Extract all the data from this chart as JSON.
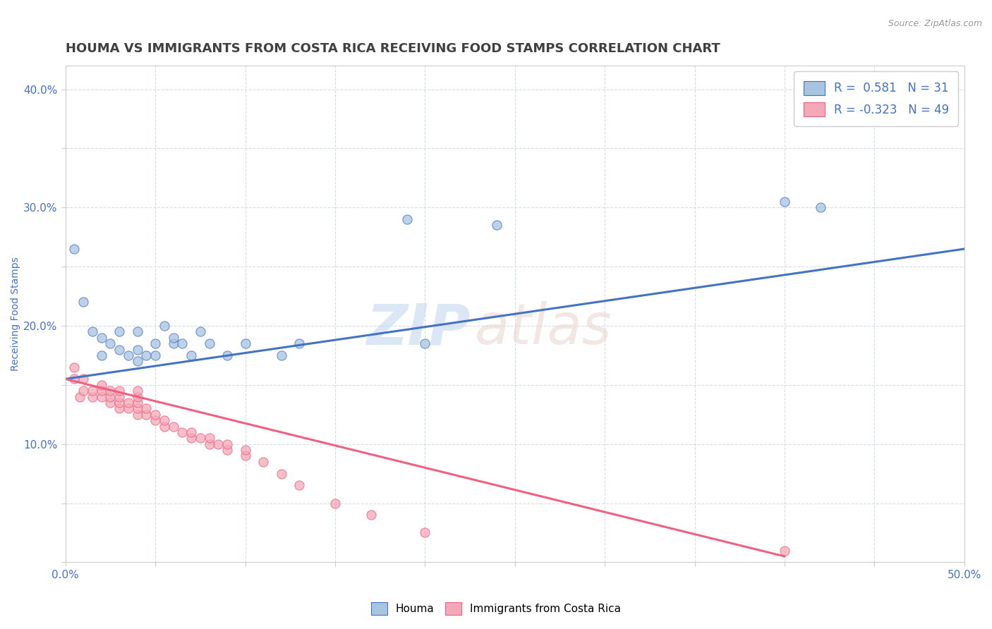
{
  "title": "HOUMA VS IMMIGRANTS FROM COSTA RICA RECEIVING FOOD STAMPS CORRELATION CHART",
  "source_text": "Source: ZipAtlas.com",
  "ylabel": "Receiving Food Stamps",
  "xlim": [
    0.0,
    0.5
  ],
  "ylim": [
    0.0,
    0.42
  ],
  "xticks": [
    0.0,
    0.05,
    0.1,
    0.15,
    0.2,
    0.25,
    0.3,
    0.35,
    0.4,
    0.45,
    0.5
  ],
  "yticks": [
    0.0,
    0.05,
    0.1,
    0.15,
    0.2,
    0.25,
    0.3,
    0.35,
    0.4
  ],
  "blue_label": "Houma",
  "pink_label": "Immigrants from Costa Rica",
  "R_blue": 0.581,
  "N_blue": 31,
  "R_pink": -0.323,
  "N_pink": 49,
  "blue_color": "#a8c4e0",
  "pink_color": "#f4a8b8",
  "blue_line_color": "#4472c4",
  "pink_line_color": "#f06080",
  "blue_scatter_x": [
    0.005,
    0.01,
    0.015,
    0.02,
    0.02,
    0.025,
    0.03,
    0.03,
    0.035,
    0.04,
    0.04,
    0.04,
    0.045,
    0.05,
    0.05,
    0.055,
    0.06,
    0.06,
    0.065,
    0.07,
    0.075,
    0.08,
    0.09,
    0.1,
    0.12,
    0.13,
    0.19,
    0.2,
    0.24,
    0.4,
    0.42
  ],
  "blue_scatter_y": [
    0.265,
    0.22,
    0.195,
    0.19,
    0.175,
    0.185,
    0.18,
    0.195,
    0.175,
    0.17,
    0.18,
    0.195,
    0.175,
    0.185,
    0.175,
    0.2,
    0.185,
    0.19,
    0.185,
    0.175,
    0.195,
    0.185,
    0.175,
    0.185,
    0.175,
    0.185,
    0.29,
    0.185,
    0.285,
    0.305,
    0.3
  ],
  "pink_scatter_x": [
    0.005,
    0.005,
    0.008,
    0.01,
    0.01,
    0.015,
    0.015,
    0.02,
    0.02,
    0.02,
    0.025,
    0.025,
    0.025,
    0.03,
    0.03,
    0.03,
    0.03,
    0.035,
    0.035,
    0.04,
    0.04,
    0.04,
    0.04,
    0.04,
    0.045,
    0.045,
    0.05,
    0.05,
    0.055,
    0.055,
    0.06,
    0.065,
    0.07,
    0.07,
    0.075,
    0.08,
    0.08,
    0.085,
    0.09,
    0.09,
    0.1,
    0.1,
    0.11,
    0.12,
    0.13,
    0.15,
    0.17,
    0.2,
    0.4
  ],
  "pink_scatter_y": [
    0.155,
    0.165,
    0.14,
    0.145,
    0.155,
    0.14,
    0.145,
    0.14,
    0.145,
    0.15,
    0.135,
    0.14,
    0.145,
    0.13,
    0.135,
    0.14,
    0.145,
    0.13,
    0.135,
    0.125,
    0.13,
    0.135,
    0.14,
    0.145,
    0.125,
    0.13,
    0.12,
    0.125,
    0.115,
    0.12,
    0.115,
    0.11,
    0.105,
    0.11,
    0.105,
    0.1,
    0.105,
    0.1,
    0.095,
    0.1,
    0.09,
    0.095,
    0.085,
    0.075,
    0.065,
    0.05,
    0.04,
    0.025,
    0.01
  ],
  "blue_trend_x": [
    0.0,
    0.5
  ],
  "blue_trend_y": [
    0.155,
    0.265
  ],
  "pink_trend_x": [
    0.0,
    0.4
  ],
  "pink_trend_y": [
    0.155,
    0.005
  ],
  "background_color": "#ffffff",
  "title_color": "#404040",
  "axis_label_color": "#4472c4",
  "tick_color": "#4472c4",
  "grid_color": "#d0d8e8",
  "title_fontsize": 13,
  "axis_label_fontsize": 10
}
